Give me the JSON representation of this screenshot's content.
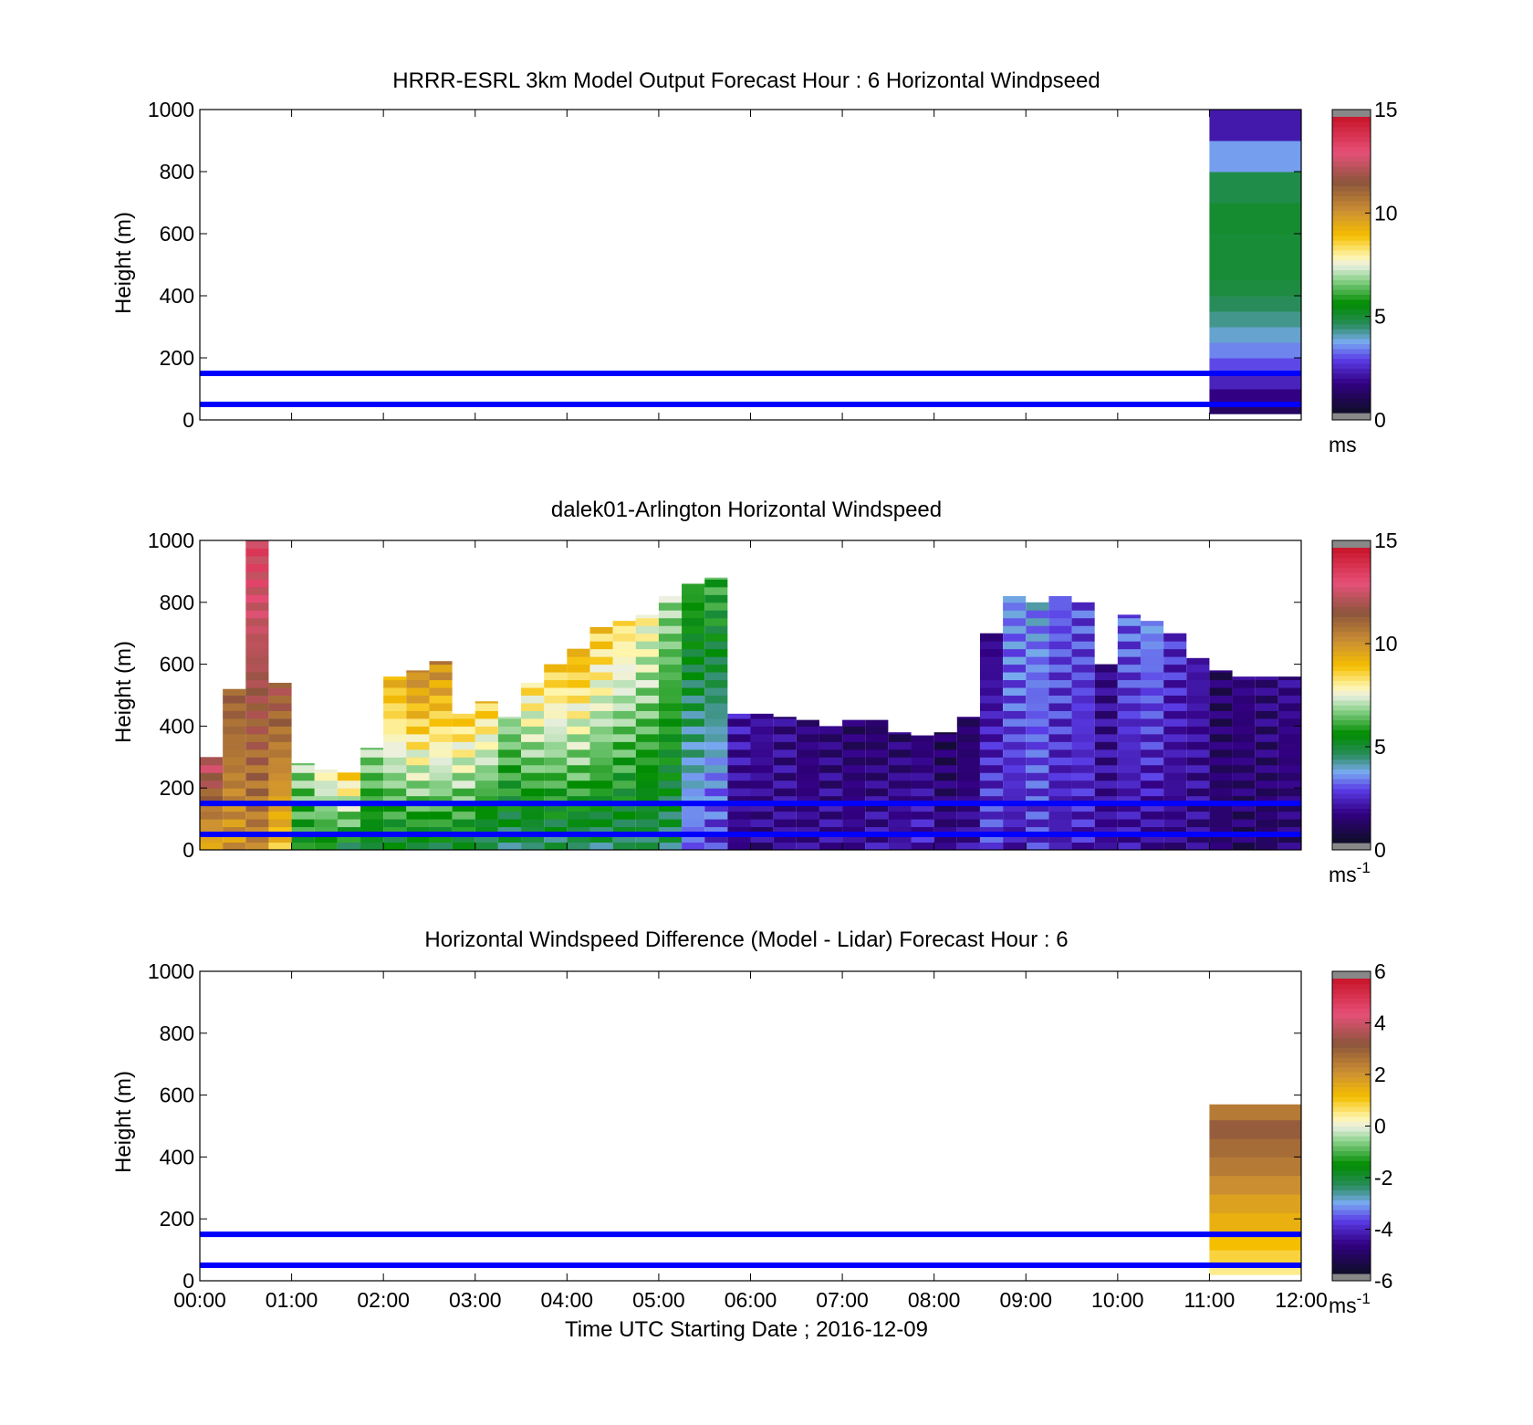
{
  "figure": {
    "xlabel": "Time UTC  Starting Date ; 2016-12-09",
    "xticks": [
      "00:00",
      "01:00",
      "02:00",
      "03:00",
      "04:00",
      "05:00",
      "06:00",
      "07:00",
      "08:00",
      "09:00",
      "10:00",
      "11:00",
      "12:00"
    ],
    "ref_line_heights_m": [
      150,
      50
    ],
    "ref_line_color": "#0000ff"
  },
  "chart_data": [
    {
      "type": "heatmap",
      "title": "HRRR-ESRL 3km Model Output   Forecast Hour : 6 Horizontal Windpseed",
      "ylabel": "Height (m)",
      "xlim": [
        0,
        12
      ],
      "ylim": [
        0,
        1000
      ],
      "yticks": [
        "0",
        "200",
        "400",
        "600",
        "800",
        "1000"
      ],
      "colorbar": {
        "min": 0,
        "max": 15,
        "ticks": [
          "0",
          "5",
          "10",
          "15"
        ],
        "unit": "ms",
        "unit_sup": ""
      },
      "columns": [
        {
          "t0": 11.0,
          "t1": 12.0,
          "segments": [
            {
              "h0": 20,
              "h1": 50,
              "v": 1.0
            },
            {
              "h0": 50,
              "h1": 100,
              "v": 1.5
            },
            {
              "h0": 100,
              "h1": 150,
              "v": 2.2
            },
            {
              "h0": 150,
              "h1": 200,
              "v": 2.8
            },
            {
              "h0": 200,
              "h1": 250,
              "v": 3.3
            },
            {
              "h0": 250,
              "h1": 300,
              "v": 3.8
            },
            {
              "h0": 300,
              "h1": 350,
              "v": 4.2
            },
            {
              "h0": 350,
              "h1": 400,
              "v": 4.5
            },
            {
              "h0": 400,
              "h1": 450,
              "v": 4.8
            },
            {
              "h0": 450,
              "h1": 600,
              "v": 4.9
            },
            {
              "h0": 600,
              "h1": 700,
              "v": 5.0
            },
            {
              "h0": 700,
              "h1": 800,
              "v": 4.7
            },
            {
              "h0": 800,
              "h1": 900,
              "v": 3.5
            },
            {
              "h0": 900,
              "h1": 1000,
              "v": 2.0
            }
          ]
        }
      ]
    },
    {
      "type": "heatmap",
      "title": "dalek01-Arlington  Horizontal Windspeed",
      "ylabel": "Height (m)",
      "xlim": [
        0,
        12
      ],
      "ylim": [
        0,
        1000
      ],
      "yticks": [
        "0",
        "200",
        "400",
        "600",
        "800",
        "1000"
      ],
      "colorbar": {
        "min": 0,
        "max": 15,
        "ticks": [
          "0",
          "5",
          "10",
          "15"
        ],
        "unit": "ms",
        "unit_sup": "-1"
      },
      "columns": [
        {
          "t": 0.0,
          "top": 300,
          "vb": 9.5,
          "vt": 13.0
        },
        {
          "t": 0.25,
          "top": 520,
          "vb": 10.0,
          "vt": 11.5
        },
        {
          "t": 0.5,
          "top": 1000,
          "vb": 10.5,
          "vt": 13.5
        },
        {
          "t": 0.75,
          "top": 540,
          "vb": 9.0,
          "vt": 12.0
        },
        {
          "t": 1.0,
          "top": 280,
          "vb": 5.5,
          "vt": 7.0
        },
        {
          "t": 1.25,
          "top": 260,
          "vb": 5.5,
          "vt": 8.0
        },
        {
          "t": 1.5,
          "top": 250,
          "vb": 5.0,
          "vt": 9.0
        },
        {
          "t": 1.75,
          "top": 330,
          "vb": 5.0,
          "vt": 7.0
        },
        {
          "t": 2.0,
          "top": 560,
          "vb": 5.0,
          "vt": 9.5
        },
        {
          "t": 2.25,
          "top": 580,
          "vb": 5.0,
          "vt": 10.5
        },
        {
          "t": 2.5,
          "top": 610,
          "vb": 5.0,
          "vt": 10.5
        },
        {
          "t": 2.75,
          "top": 440,
          "vb": 5.0,
          "vt": 9.0
        },
        {
          "t": 3.0,
          "top": 480,
          "vb": 4.5,
          "vt": 9.0
        },
        {
          "t": 3.25,
          "top": 430,
          "vb": 4.5,
          "vt": 7.0
        },
        {
          "t": 3.5,
          "top": 540,
          "vb": 4.5,
          "vt": 8.5
        },
        {
          "t": 3.75,
          "top": 600,
          "vb": 4.5,
          "vt": 9.0
        },
        {
          "t": 4.0,
          "top": 650,
          "vb": 4.5,
          "vt": 9.5
        },
        {
          "t": 4.25,
          "top": 720,
          "vb": 4.5,
          "vt": 9.0
        },
        {
          "t": 4.5,
          "top": 740,
          "vb": 4.5,
          "vt": 8.5
        },
        {
          "t": 4.75,
          "top": 760,
          "vb": 4.5,
          "vt": 8.0
        },
        {
          "t": 5.0,
          "top": 820,
          "vb": 4.5,
          "vt": 7.0
        },
        {
          "t": 5.25,
          "top": 860,
          "vb": 3.0,
          "vt": 6.0
        },
        {
          "t": 5.5,
          "top": 880,
          "vb": 2.5,
          "vt": 6.0
        },
        {
          "t": 5.75,
          "top": 440,
          "vb": 1.5,
          "vt": 2.0
        },
        {
          "t": 6.0,
          "top": 440,
          "vb": 1.5,
          "vt": 1.8
        },
        {
          "t": 6.25,
          "top": 430,
          "vb": 1.7,
          "vt": 1.5
        },
        {
          "t": 6.5,
          "top": 420,
          "vb": 1.6,
          "vt": 1.3
        },
        {
          "t": 6.75,
          "top": 400,
          "vb": 1.8,
          "vt": 1.2
        },
        {
          "t": 7.0,
          "top": 420,
          "vb": 1.7,
          "vt": 1.0
        },
        {
          "t": 7.25,
          "top": 420,
          "vb": 1.8,
          "vt": 1.0
        },
        {
          "t": 7.5,
          "top": 380,
          "vb": 1.9,
          "vt": 1.1
        },
        {
          "t": 7.75,
          "top": 370,
          "vb": 2.2,
          "vt": 1.2
        },
        {
          "t": 8.0,
          "top": 380,
          "vb": 1.5,
          "vt": 0.8
        },
        {
          "t": 8.25,
          "top": 430,
          "vb": 1.7,
          "vt": 1.0
        },
        {
          "t": 8.5,
          "top": 700,
          "vb": 2.8,
          "vt": 1.5
        },
        {
          "t": 8.75,
          "top": 820,
          "vb": 2.0,
          "vt": 3.5
        },
        {
          "t": 9.0,
          "top": 800,
          "vb": 2.5,
          "vt": 3.5
        },
        {
          "t": 9.25,
          "top": 820,
          "vb": 2.0,
          "vt": 3.0
        },
        {
          "t": 9.5,
          "top": 800,
          "vb": 2.2,
          "vt": 2.8
        },
        {
          "t": 9.75,
          "top": 600,
          "vb": 1.8,
          "vt": 1.5
        },
        {
          "t": 10.0,
          "top": 760,
          "vb": 1.8,
          "vt": 3.0
        },
        {
          "t": 10.25,
          "top": 740,
          "vb": 1.6,
          "vt": 3.5
        },
        {
          "t": 10.5,
          "top": 700,
          "vb": 1.5,
          "vt": 2.5
        },
        {
          "t": 10.75,
          "top": 620,
          "vb": 1.5,
          "vt": 2.0
        },
        {
          "t": 11.0,
          "top": 580,
          "vb": 1.2,
          "vt": 1.0
        },
        {
          "t": 11.25,
          "top": 560,
          "vb": 1.0,
          "vt": 1.5
        },
        {
          "t": 11.5,
          "top": 560,
          "vb": 1.0,
          "vt": 1.4
        },
        {
          "t": 11.75,
          "top": 560,
          "vb": 1.2,
          "vt": 1.6
        }
      ]
    },
    {
      "type": "heatmap",
      "title": "Horizontal Windspeed Difference (Model - Lidar) Forecast Hour : 6",
      "ylabel": "Height (m)",
      "xlim": [
        0,
        12
      ],
      "ylim": [
        0,
        1000
      ],
      "yticks": [
        "0",
        "200",
        "400",
        "600",
        "800",
        "1000"
      ],
      "colorbar": {
        "min": -6,
        "max": 6,
        "ticks": [
          "-6",
          "-4",
          "-2",
          "0",
          "2",
          "4",
          "6"
        ],
        "unit": "ms",
        "unit_sup": "-1"
      },
      "columns": [
        {
          "t0": 11.0,
          "t1": 12.0,
          "segments": [
            {
              "h0": 20,
              "h1": 60,
              "v": 0.5
            },
            {
              "h0": 60,
              "h1": 100,
              "v": 0.9
            },
            {
              "h0": 100,
              "h1": 160,
              "v": 1.2
            },
            {
              "h0": 160,
              "h1": 220,
              "v": 1.5
            },
            {
              "h0": 220,
              "h1": 280,
              "v": 1.8
            },
            {
              "h0": 280,
              "h1": 340,
              "v": 2.2
            },
            {
              "h0": 340,
              "h1": 400,
              "v": 2.6
            },
            {
              "h0": 400,
              "h1": 460,
              "v": 2.9
            },
            {
              "h0": 460,
              "h1": 520,
              "v": 3.2
            },
            {
              "h0": 520,
              "h1": 570,
              "v": 2.6
            }
          ]
        }
      ]
    }
  ]
}
